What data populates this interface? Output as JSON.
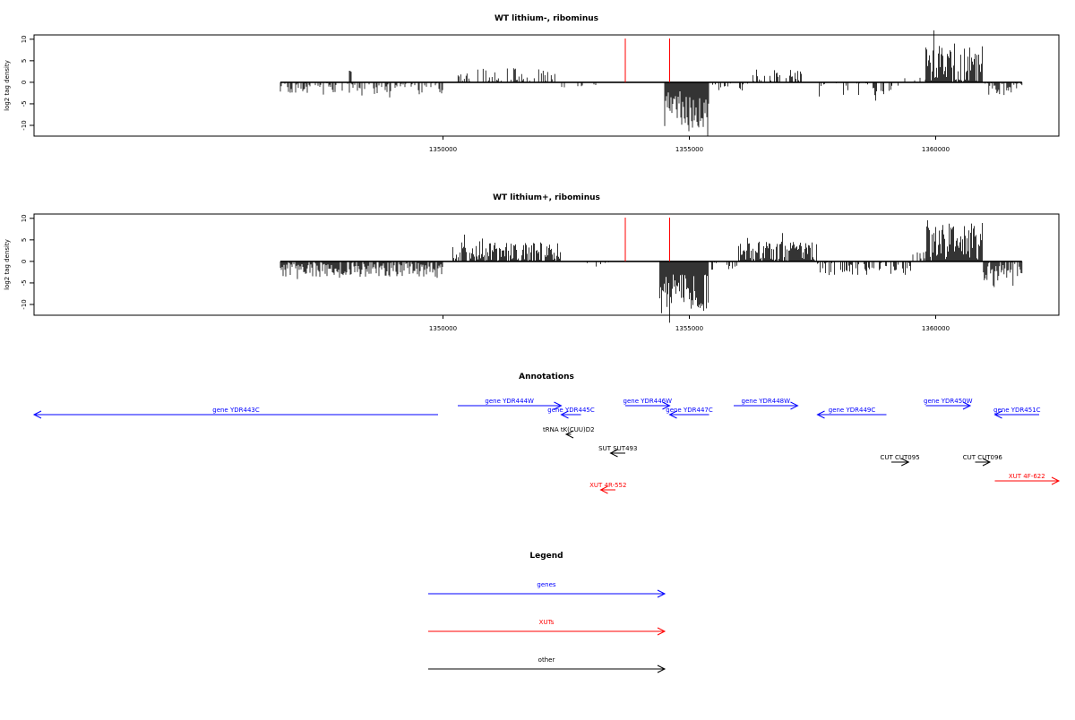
{
  "colors": {
    "gene": "#0000ff",
    "xut": "#ff0000",
    "other": "#000000",
    "marker": "#ff0000",
    "axis": "#000000",
    "bars": "#000000"
  },
  "chart_data": [
    {
      "type": "bar",
      "title": "WT lithium-, ribominus",
      "ylabel": "log2 tag density",
      "xlim": [
        1341700,
        1362500
      ],
      "ylim": [
        -12.5,
        11
      ],
      "x_ticks": [
        1350000,
        1355000,
        1360000
      ],
      "x_tick_labels": [
        "1350000",
        "1355000",
        "1360000"
      ],
      "y_ticks": [
        10,
        5,
        0,
        -5,
        -10
      ],
      "y_tick_labels": [
        "10",
        "5",
        "0",
        "-5",
        "-10"
      ],
      "data_extent": [
        1346700,
        1361750
      ],
      "marker_lines": [
        1353700,
        1354600
      ],
      "segments": [
        {
          "start": 1346700,
          "end": 1350000,
          "sign": -1,
          "mean": 1.2,
          "amp": 1.4,
          "density": 0.45
        },
        {
          "start": 1348100,
          "end": 1348150,
          "sign": 1,
          "mean": 2.6,
          "amp": 0.2,
          "density": 1.0
        },
        {
          "start": 1350250,
          "end": 1352300,
          "sign": 1,
          "mean": 1.3,
          "amp": 2.0,
          "density": 0.4
        },
        {
          "start": 1352300,
          "end": 1353100,
          "sign": -1,
          "mean": 0.8,
          "amp": 0.6,
          "density": 0.2
        },
        {
          "start": 1354500,
          "end": 1355400,
          "sign": -1,
          "mean": 6.5,
          "amp": 4.5,
          "density": 1.0
        },
        {
          "start": 1355400,
          "end": 1356200,
          "sign": -1,
          "mean": 1.0,
          "amp": 1.0,
          "density": 0.3
        },
        {
          "start": 1356200,
          "end": 1357600,
          "sign": 1,
          "mean": 1.2,
          "amp": 1.8,
          "density": 0.35
        },
        {
          "start": 1357600,
          "end": 1359300,
          "sign": -1,
          "mean": 1.4,
          "amp": 2.0,
          "density": 0.35
        },
        {
          "start": 1359300,
          "end": 1359800,
          "sign": 1,
          "mean": 0.6,
          "amp": 0.5,
          "density": 0.15
        },
        {
          "start": 1359800,
          "end": 1360950,
          "sign": 1,
          "mean": 4.0,
          "amp": 5.0,
          "density": 0.95
        },
        {
          "start": 1360950,
          "end": 1361750,
          "sign": -1,
          "mean": 1.4,
          "amp": 1.6,
          "density": 0.6
        }
      ]
    },
    {
      "type": "bar",
      "title": "WT lithium+, ribominus",
      "ylabel": "log2 tag density",
      "xlim": [
        1341700,
        1362500
      ],
      "ylim": [
        -12.5,
        11
      ],
      "x_ticks": [
        1350000,
        1355000,
        1360000
      ],
      "x_tick_labels": [
        "1350000",
        "1355000",
        "1360000"
      ],
      "y_ticks": [
        10,
        5,
        0,
        -5,
        -10
      ],
      "y_tick_labels": [
        "10",
        "5",
        "0",
        "-5",
        "-10"
      ],
      "data_extent": [
        1346700,
        1361750
      ],
      "marker_lines": [
        1353700,
        1354600
      ],
      "segments": [
        {
          "start": 1346700,
          "end": 1350000,
          "sign": -1,
          "mean": 1.8,
          "amp": 1.8,
          "density": 0.85
        },
        {
          "start": 1350200,
          "end": 1352400,
          "sign": 1,
          "mean": 2.2,
          "amp": 2.2,
          "density": 0.85
        },
        {
          "start": 1352400,
          "end": 1353500,
          "sign": -1,
          "mean": 0.6,
          "amp": 0.6,
          "density": 0.12
        },
        {
          "start": 1354400,
          "end": 1355400,
          "sign": -1,
          "mean": 7.0,
          "amp": 4.5,
          "density": 1.0
        },
        {
          "start": 1355400,
          "end": 1356000,
          "sign": -1,
          "mean": 1.0,
          "amp": 1.2,
          "density": 0.3
        },
        {
          "start": 1356000,
          "end": 1357600,
          "sign": 1,
          "mean": 2.2,
          "amp": 2.4,
          "density": 0.9
        },
        {
          "start": 1357600,
          "end": 1359500,
          "sign": -1,
          "mean": 1.4,
          "amp": 1.8,
          "density": 0.5
        },
        {
          "start": 1359500,
          "end": 1359800,
          "sign": 1,
          "mean": 1.0,
          "amp": 1.5,
          "density": 0.3
        },
        {
          "start": 1359800,
          "end": 1360950,
          "sign": 1,
          "mean": 4.5,
          "amp": 4.5,
          "density": 1.0
        },
        {
          "start": 1360950,
          "end": 1361750,
          "sign": -1,
          "mean": 2.2,
          "amp": 2.5,
          "density": 0.9
        }
      ]
    }
  ],
  "annotations": {
    "title": "Annotations",
    "features": [
      {
        "label": "gene YDR443C",
        "start": 1341700,
        "end": 1349900,
        "dir": -1,
        "kind": "gene",
        "row": 1
      },
      {
        "label": "gene YDR444W",
        "start": 1350300,
        "end": 1352400,
        "dir": 1,
        "kind": "gene",
        "row": 0
      },
      {
        "label": "gene YDR445C",
        "start": 1352400,
        "end": 1352800,
        "dir": -1,
        "kind": "gene",
        "row": 1
      },
      {
        "label": "tRNA tK(CUU)D2",
        "start": 1352500,
        "end": 1352600,
        "dir": -1,
        "kind": "other",
        "row": 2
      },
      {
        "label": "SUT SUT493",
        "start": 1353400,
        "end": 1353700,
        "dir": -1,
        "kind": "other",
        "row": 3
      },
      {
        "label": "XUT 4R-552",
        "start": 1353200,
        "end": 1353500,
        "dir": -1,
        "kind": "xut",
        "row": 5
      },
      {
        "label": "gene YDR446W",
        "start": 1353700,
        "end": 1354600,
        "dir": 1,
        "kind": "gene",
        "row": 0
      },
      {
        "label": "gene YDR447C",
        "start": 1354600,
        "end": 1355400,
        "dir": -1,
        "kind": "gene",
        "row": 1
      },
      {
        "label": "gene YDR448W",
        "start": 1355900,
        "end": 1357200,
        "dir": 1,
        "kind": "gene",
        "row": 0
      },
      {
        "label": "gene YDR449C",
        "start": 1357600,
        "end": 1359000,
        "dir": -1,
        "kind": "gene",
        "row": 1
      },
      {
        "label": "CUT CUT095",
        "start": 1359100,
        "end": 1359450,
        "dir": 1,
        "kind": "other",
        "row": 4
      },
      {
        "label": "gene YDR450W",
        "start": 1359800,
        "end": 1360700,
        "dir": 1,
        "kind": "gene",
        "row": 0
      },
      {
        "label": "CUT CUT096",
        "start": 1360800,
        "end": 1361100,
        "dir": 1,
        "kind": "other",
        "row": 4
      },
      {
        "label": "gene YDR451C",
        "start": 1361200,
        "end": 1362100,
        "dir": -1,
        "kind": "gene",
        "row": 1
      },
      {
        "label": "XUT 4F-622",
        "start": 1361200,
        "end": 1362500,
        "dir": 1,
        "kind": "xut",
        "row": 6
      }
    ]
  },
  "legend": {
    "title": "Legend",
    "items": [
      {
        "label": "genes",
        "kind": "gene"
      },
      {
        "label": "XUTs",
        "kind": "xut"
      },
      {
        "label": "other",
        "kind": "other"
      }
    ]
  }
}
